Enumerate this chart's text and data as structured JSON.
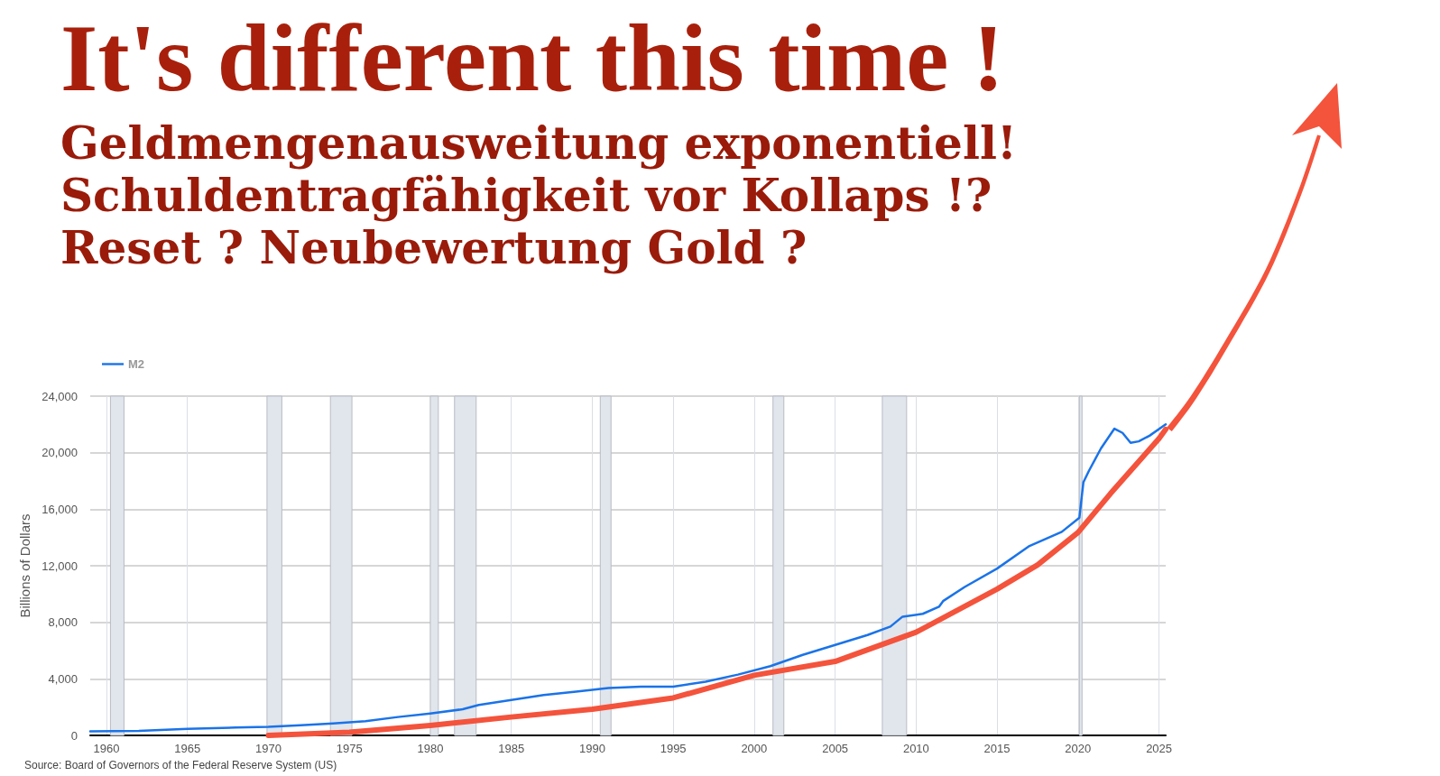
{
  "chart_data": {
    "type": "line",
    "title": "It's different this time !",
    "subtitle": "Geldmengenausweitung exponentiell!\nSchuldentragfähigkeit vor Kollaps !?\nReset ? Neubewertung Gold ?",
    "ylabel": "Billions of Dollars",
    "annotations": [
      "Source: Board of Governors of the Federal Reserve System (US)"
    ],
    "x": [
      "1959-01",
      "1962-01",
      "1965-01",
      "1968-01",
      "1970-01",
      "1972-01",
      "1974-01",
      "1976-01",
      "1978-01",
      "1980-01",
      "1982-01",
      "1983-01",
      "1985-01",
      "1987-01",
      "1989-01",
      "1991-01",
      "1993-01",
      "1995-01",
      "1997-01",
      "1999-01",
      "2001-01",
      "2003-01",
      "2005-01",
      "2007-01",
      "2008-06",
      "2009-03",
      "2010-06",
      "2011-06",
      "2011-09",
      "2013-01",
      "2015-01",
      "2017-01",
      "2019-01",
      "2020-02",
      "2020-05",
      "2020-09",
      "2021-06",
      "2022-04",
      "2022-10",
      "2023-04",
      "2023-10",
      "2024-06",
      "2025-06"
    ],
    "series": [
      {
        "name": "M2",
        "color": "#1a73e8",
        "values": [
          290,
          320,
          460,
          560,
          600,
          720,
          850,
          1000,
          1300,
          1550,
          1850,
          2150,
          2500,
          2850,
          3100,
          3350,
          3450,
          3450,
          3800,
          4300,
          4900,
          5700,
          6400,
          7100,
          7700,
          8400,
          8600,
          9100,
          9500,
          10500,
          11800,
          13400,
          14400,
          15400,
          17900,
          18700,
          20300,
          21700,
          21400,
          20700,
          20800,
          21200,
          22000
        ]
      },
      {
        "type": "line",
        "color": "#f4533c",
        "x": [
          "1970-01",
          "1975-01",
          "1980-01",
          "1985-01",
          "1990-01",
          "1995-01",
          "2000-01",
          "2005-01",
          "2010-01",
          "2015-01",
          "2017-07",
          "2020-01",
          "2022-01",
          "2025-01",
          "2025-06"
        ],
        "values": [
          0,
          220,
          700,
          1300,
          1850,
          2650,
          4250,
          5230,
          7300,
          10350,
          12060,
          14350,
          17100,
          21000,
          21650
        ]
      }
    ],
    "xlim": [
      "1959-01",
      "2025-06"
    ],
    "xticks": [
      {
        "value": "1960",
        "label": "1960"
      },
      {
        "value": "1965",
        "label": "1965"
      },
      {
        "value": "1970",
        "label": "1970"
      },
      {
        "value": "1975",
        "label": "1975"
      },
      {
        "value": "1980",
        "label": "1980"
      },
      {
        "value": "1985",
        "label": "1985"
      },
      {
        "value": "1990",
        "label": "1990"
      },
      {
        "value": "1995",
        "label": "1995"
      },
      {
        "value": "2000",
        "label": "2000"
      },
      {
        "value": "2005",
        "label": "2005"
      },
      {
        "value": "2010",
        "label": "2010"
      },
      {
        "value": "2015",
        "label": "2015"
      },
      {
        "value": "2020",
        "label": "2020"
      },
      {
        "value": "2025",
        "label": "2025"
      }
    ],
    "ylim": [
      0,
      24000
    ],
    "yticks": [
      {
        "value": 0,
        "label": "0"
      },
      {
        "value": 4000,
        "label": "4,000"
      },
      {
        "value": 8000,
        "label": "8,000"
      },
      {
        "value": 12000,
        "label": "12,000"
      },
      {
        "value": 16000,
        "label": "16,000"
      },
      {
        "value": 20000,
        "label": "20,000"
      },
      {
        "value": 24000,
        "label": "24,000"
      }
    ],
    "bands": [
      {
        "axis": "x",
        "from": "1960-04",
        "to": "1961-02",
        "color": "#e1e5ec"
      },
      {
        "axis": "x",
        "from": "1969-12",
        "to": "1970-11",
        "color": "#e1e5ec"
      },
      {
        "axis": "x",
        "from": "1973-11",
        "to": "1975-03",
        "color": "#e1e5ec"
      },
      {
        "axis": "x",
        "from": "1980-01",
        "to": "1980-07",
        "color": "#e1e5ec"
      },
      {
        "axis": "x",
        "from": "1981-07",
        "to": "1982-11",
        "color": "#e1e5ec"
      },
      {
        "axis": "x",
        "from": "1990-07",
        "to": "1991-03",
        "color": "#e1e5ec"
      },
      {
        "axis": "x",
        "from": "2001-03",
        "to": "2001-11",
        "color": "#e1e5ec"
      },
      {
        "axis": "x",
        "from": "2007-12",
        "to": "2009-06",
        "color": "#e1e5ec"
      },
      {
        "axis": "x",
        "from": "2020-02",
        "to": "2020-04",
        "color": "#e1e5ec"
      }
    ],
    "grid": true,
    "legend": "top left",
    "marker": "none",
    "line_style": "solid"
  }
}
